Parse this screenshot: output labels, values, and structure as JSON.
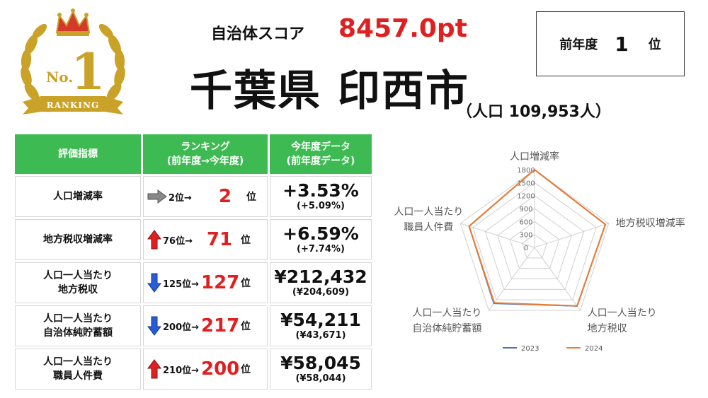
{
  "header": {
    "score_label": "自治体スコア",
    "score_value": "8457.0pt",
    "city_name": "千葉県 印西市",
    "population": "（人口 109,953人）",
    "prev_rank_label": "前年度",
    "prev_rank_value": "1",
    "prev_rank_unit": "位"
  },
  "badge": {
    "icon": "crown-laurel-ranking-badge",
    "text_no": "No.",
    "text_num": "1",
    "text_ribbon": "RANKING",
    "colors": {
      "gold": "#c9a227",
      "crown": "#d43a2a"
    }
  },
  "table": {
    "headers": [
      "評価指標",
      "ランキング\n(前年度→今年度)",
      "今年度データ\n(前年度データ)"
    ],
    "rank_unit": "位",
    "rows": [
      {
        "metric": "人口増減率",
        "trend": "same",
        "prev_rank": "2位→",
        "curr_rank": "2",
        "curr_value": "+3.53%",
        "prev_value": "(+5.09%)"
      },
      {
        "metric": "地方税収増減率",
        "trend": "up",
        "prev_rank": "76位→",
        "curr_rank": "71",
        "curr_value": "+6.59%",
        "prev_value": "(+7.74%)"
      },
      {
        "metric": "人口一人当たり\n地方税収",
        "trend": "down",
        "prev_rank": "125位→",
        "curr_rank": "127",
        "curr_value": "¥212,432",
        "prev_value": "(¥204,609)"
      },
      {
        "metric": "人口一人当たり\n自治体純貯蓄額",
        "trend": "down",
        "prev_rank": "200位→",
        "curr_rank": "217",
        "curr_value": "¥54,211",
        "prev_value": "(¥43,671)"
      },
      {
        "metric": "人口一人当たり\n職員人件費",
        "trend": "up",
        "prev_rank": "210位→",
        "curr_rank": "200",
        "curr_value": "¥58,045",
        "prev_value": "(¥58,044)"
      }
    ],
    "colors": {
      "header_bg": "#3dbb52",
      "rank_red": "#e02020",
      "arrow_up": "#e02020",
      "arrow_down": "#2a5bd7",
      "arrow_same": "#888888"
    }
  },
  "chart_data": {
    "type": "radar",
    "axes": [
      "人口増減率",
      "地方税収増減率",
      "人口一人当たり\n地方税収",
      "人口一人当たり\n自治体純貯蓄額",
      "人口一人当たり\n職員人件費"
    ],
    "rticks": [
      0,
      300,
      600,
      900,
      1200,
      1500,
      1800
    ],
    "rlim": [
      0,
      1800
    ],
    "series": [
      {
        "name": "2023",
        "color": "#4472c4",
        "values": [
          1800,
          1720,
          1675,
          1600,
          1590
        ]
      },
      {
        "name": "2024",
        "color": "#ed7d31",
        "values": [
          1800,
          1722,
          1673,
          1584,
          1591
        ]
      }
    ],
    "legend": "bottom",
    "grid": true
  }
}
